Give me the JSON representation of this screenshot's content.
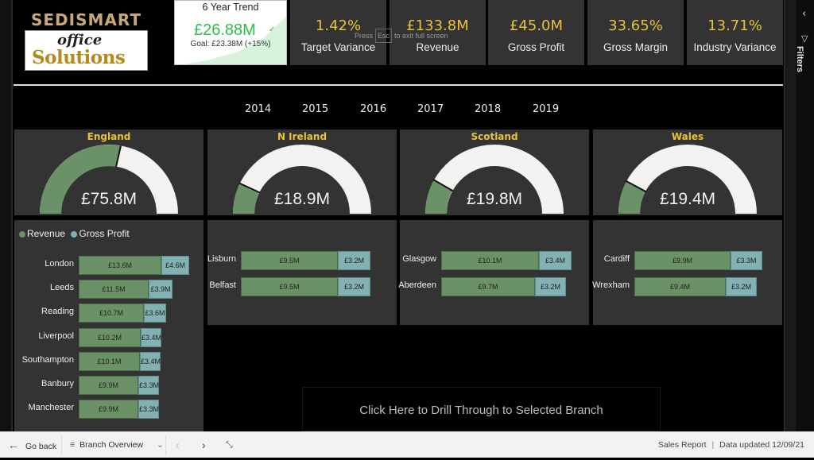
{
  "logo": {
    "brand": "SEDISMART",
    "line1": "office",
    "line2": "Solutions"
  },
  "trend_card": {
    "title": "6 Year Trend",
    "value": "£26.88M",
    "check_icon": "✓",
    "goal": "Goal: £23.38M (+15%)",
    "color": "#2ebd4a"
  },
  "kpis": [
    {
      "value": "1.42%",
      "label": "Target Variance"
    },
    {
      "value": "£133.8M",
      "label": "Revenue"
    },
    {
      "value": "£45.0M",
      "label": "Gross Profit"
    },
    {
      "value": "33.65%",
      "label": "Gross Margin"
    },
    {
      "value": "13.71%",
      "label": "Industry Variance"
    }
  ],
  "fullscreen_hint": {
    "press": "Press",
    "key": "Esc",
    "rest": "to exit full screen"
  },
  "years": [
    "2014",
    "2015",
    "2016",
    "2017",
    "2018",
    "2019"
  ],
  "gauges": [
    {
      "region": "England",
      "value": "£75.8M",
      "fraction": 0.57
    },
    {
      "region": "N Ireland",
      "value": "£18.9M",
      "fraction": 0.14
    },
    {
      "region": "Scotland",
      "value": "£19.8M",
      "fraction": 0.15
    },
    {
      "region": "Wales",
      "value": "£19.4M",
      "fraction": 0.145
    }
  ],
  "legend": {
    "revenue": "Revenue",
    "gross_profit": "Gross Profit",
    "revenue_color": "#6b9166",
    "gp_color": "#81b1b3"
  },
  "branches": {
    "england": [
      {
        "name": "London",
        "revenue": "£13.6M",
        "gp": "£4.6M",
        "rev_w": 104,
        "gp_w": 35
      },
      {
        "name": "Leeds",
        "revenue": "£11.5M",
        "gp": "£3.9M",
        "rev_w": 88,
        "gp_w": 30
      },
      {
        "name": "Reading",
        "revenue": "£10.7M",
        "gp": "£3.6M",
        "rev_w": 82,
        "gp_w": 28
      },
      {
        "name": "Liverpool",
        "revenue": "£10.2M",
        "gp": "£3.4M",
        "rev_w": 78,
        "gp_w": 26
      },
      {
        "name": "Southampton",
        "revenue": "£10.1M",
        "gp": "£3.4M",
        "rev_w": 77,
        "gp_w": 26
      },
      {
        "name": "Banbury",
        "revenue": "£9.9M",
        "gp": "£3.3M",
        "rev_w": 75,
        "gp_w": 26
      },
      {
        "name": "Manchester",
        "revenue": "£9.9M",
        "gp": "£3.3M",
        "rev_w": 75,
        "gp_w": 26
      }
    ],
    "nireland": [
      {
        "name": "Lisburn",
        "revenue": "£9.5M",
        "gp": "£3.2M",
        "rev_w": 122,
        "gp_w": 41
      },
      {
        "name": "Belfast",
        "revenue": "£9.5M",
        "gp": "£3.2M",
        "rev_w": 122,
        "gp_w": 41
      }
    ],
    "scotland": [
      {
        "name": "Glasgow",
        "revenue": "£10.1M",
        "gp": "£3.4M",
        "rev_w": 123,
        "gp_w": 41
      },
      {
        "name": "Aberdeen",
        "revenue": "£9.7M",
        "gp": "£3.2M",
        "rev_w": 118,
        "gp_w": 39
      }
    ],
    "wales": [
      {
        "name": "Cardiff",
        "revenue": "£9.9M",
        "gp": "£3.3M",
        "rev_w": 121,
        "gp_w": 40
      },
      {
        "name": "Wrexham",
        "revenue": "£9.4M",
        "gp": "£3.2M",
        "rev_w": 115,
        "gp_w": 39
      }
    ]
  },
  "drill_button": "Click Here to Drill Through to Selected Branch",
  "filters_pane": {
    "label": "Filters"
  },
  "bottom_bar": {
    "go_back": "Go back",
    "page_name": "Branch Overview",
    "report_name": "Sales Report",
    "separator": "|",
    "data_updated": "Data updated 12/09/21"
  }
}
